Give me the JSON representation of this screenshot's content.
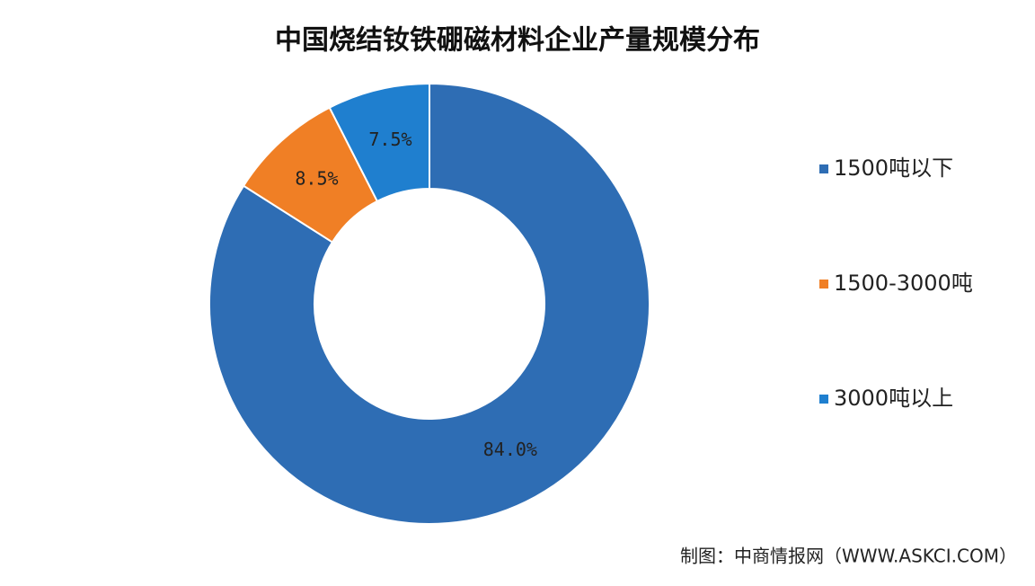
{
  "chart_data": {
    "type": "donut",
    "title": "中国烧结钕铁硼磁材料企业产量规模分布",
    "categories": [
      "1500吨以下",
      "1500-3000吨",
      "3000吨以上"
    ],
    "values": [
      84.0,
      8.5,
      7.5
    ],
    "value_labels": [
      "84.0%",
      "8.5%",
      "7.5%"
    ],
    "colors": [
      "#2e6db4",
      "#f07f25",
      "#1f7fcf"
    ],
    "legend": "right",
    "source": "制图：中商情报网（WWW.ASKCI.COM）"
  }
}
